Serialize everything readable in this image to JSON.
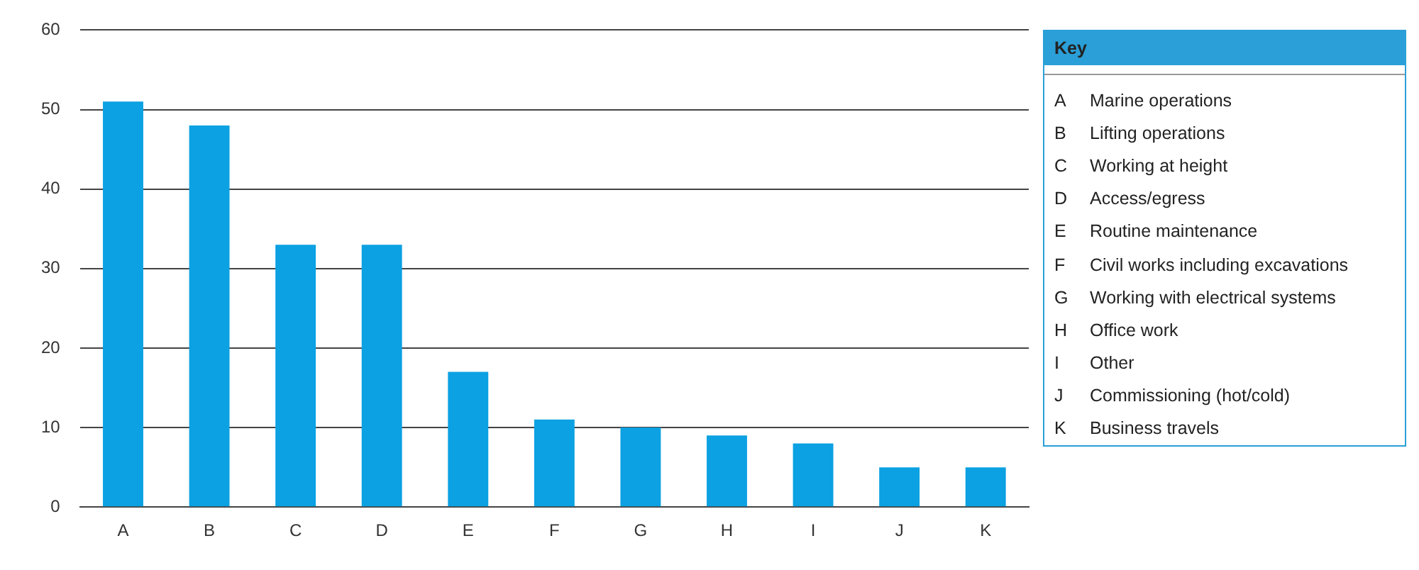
{
  "chart_data": {
    "type": "bar",
    "categories": [
      "A",
      "B",
      "C",
      "D",
      "E",
      "F",
      "G",
      "H",
      "I",
      "J",
      "K"
    ],
    "values": [
      51,
      48,
      33,
      33,
      17,
      11,
      10,
      9,
      8,
      5,
      5
    ],
    "color": "#0ba1e2",
    "ylim": [
      0,
      60
    ],
    "yticks": [
      0,
      10,
      20,
      30,
      40,
      50,
      60
    ],
    "grid": "y",
    "legend": false,
    "legend_title": "Key",
    "annotations": [
      "A Marine operations",
      "B Lifting operations",
      "C Working at height",
      "D Access/egress",
      "E Routine maintenance",
      "F Civil works including excavations",
      "G Working with electrical systems",
      "H Office work",
      "I Other",
      "J Commissioning (hot/cold)",
      "K Business travels"
    ]
  }
}
